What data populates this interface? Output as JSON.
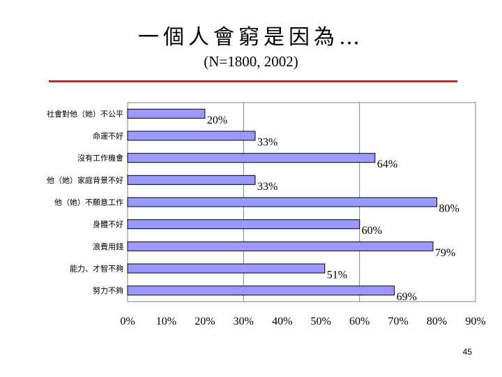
{
  "slide": {
    "title": "一個人會窮是因為…",
    "subtitle": "(N=1800, 2002)",
    "page_number": "45",
    "rule_color": "#d21e1e"
  },
  "chart_data": {
    "type": "bar",
    "orientation": "horizontal",
    "categories": [
      "社會對他（她）不公平",
      "命運不好",
      "沒有工作機會",
      "他（她）家庭背景不好",
      "他（她）不願意工作",
      "身體不好",
      "浪費用錢",
      "能力、才智不夠",
      "努力不夠"
    ],
    "values": [
      0.2,
      0.33,
      0.64,
      0.33,
      0.8,
      0.6,
      0.79,
      0.51,
      0.69
    ],
    "data_labels": [
      "20%",
      "33%",
      "64%",
      "33%",
      "80%",
      "60%",
      "79%",
      "51%",
      "69%"
    ],
    "xlim": [
      0,
      0.9
    ],
    "x_ticks": [
      "0%",
      "10%",
      "20%",
      "30%",
      "40%",
      "50%",
      "60%",
      "70%",
      "80%",
      "90%"
    ],
    "gridlines": [
      0.3,
      0.6,
      0.9
    ],
    "bar_color": "#9999ff",
    "grid": true,
    "legend": "none"
  }
}
